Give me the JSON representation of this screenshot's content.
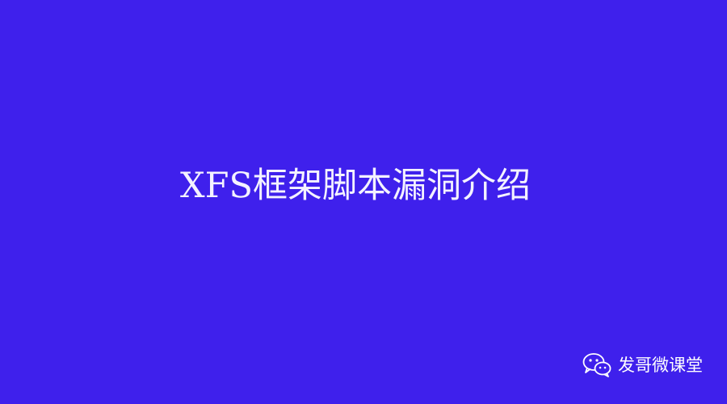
{
  "slide": {
    "title": "XFS框架脚本漏洞介绍",
    "background_color": "#3F20EC"
  },
  "watermark": {
    "icon": "wechat-icon",
    "text": "发哥微课堂"
  }
}
